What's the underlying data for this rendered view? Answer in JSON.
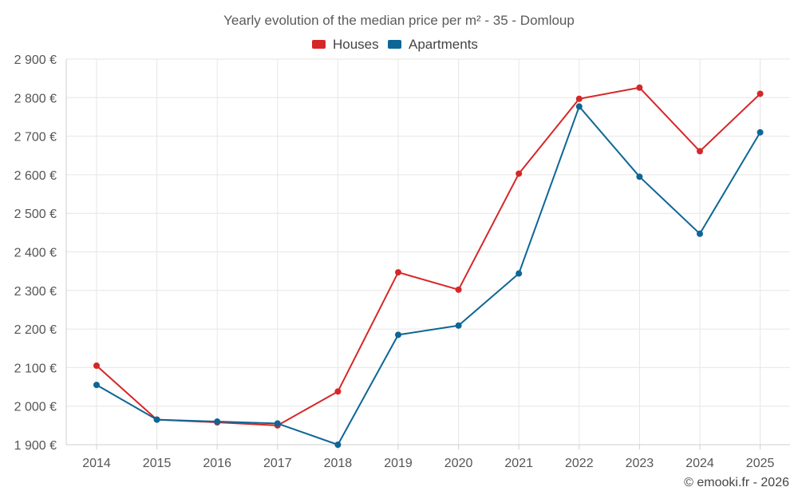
{
  "chart_data": {
    "type": "line",
    "title": "Yearly evolution of the median price per m² - 35 - Domloup",
    "categories": [
      "2014",
      "2015",
      "2016",
      "2017",
      "2018",
      "2019",
      "2020",
      "2021",
      "2022",
      "2023",
      "2024",
      "2025"
    ],
    "series": [
      {
        "name": "Houses",
        "color": "#d62728",
        "values": [
          2105,
          1965,
          1958,
          1950,
          2038,
          2347,
          2302,
          2603,
          2797,
          2826,
          2661,
          2810
        ]
      },
      {
        "name": "Apartments",
        "color": "#0d6696",
        "values": [
          2055,
          1965,
          1960,
          1955,
          1900,
          2185,
          2209,
          2344,
          2777,
          2595,
          2447,
          2710
        ]
      }
    ],
    "ylim": [
      1900,
      2900
    ],
    "yticks": [
      1900,
      2000,
      2100,
      2200,
      2300,
      2400,
      2500,
      2600,
      2700,
      2800,
      2900
    ],
    "ytick_labels": [
      "1 900 €",
      "2 000 €",
      "2 100 €",
      "2 200 €",
      "2 300 €",
      "2 400 €",
      "2 500 €",
      "2 600 €",
      "2 700 €",
      "2 800 €",
      "2 900 €"
    ],
    "xlabel": "",
    "ylabel": "",
    "grid": true,
    "legend": "top-center"
  },
  "credit": "© emooki.fr - 2026"
}
